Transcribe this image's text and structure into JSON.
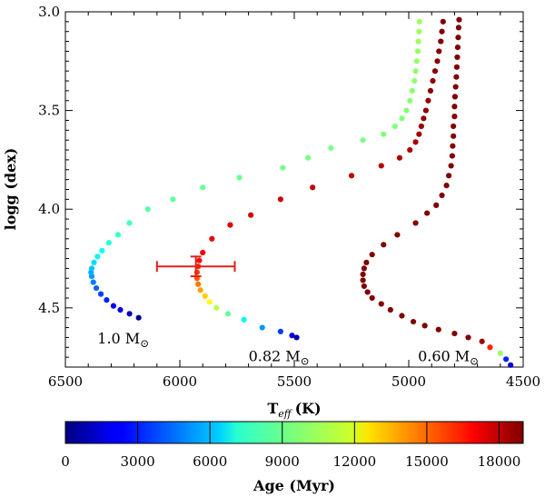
{
  "chart_data": {
    "type": "scatter",
    "xlabel": "T",
    "xlabel_sub": "eff",
    "xlabel_unit": "(K)",
    "ylabel": "logg (dex)",
    "x_reversed": true,
    "y_reversed": true,
    "xlim": [
      6500,
      4500
    ],
    "ylim": [
      3.0,
      4.8
    ],
    "x_ticks": [
      6500,
      6000,
      5500,
      5000,
      4500
    ],
    "y_ticks": [
      3.0,
      3.5,
      4.0,
      4.5
    ],
    "colorbar": {
      "label": "Age (Myr)",
      "min": 0,
      "max": 19000,
      "ticks": [
        0,
        3000,
        6000,
        9000,
        12000,
        15000,
        18000
      ],
      "colormap": "jet"
    },
    "series": [
      {
        "label_text": "1.0 M",
        "label_symbol": "⊙",
        "label_pos": [
          6360,
          4.68
        ],
        "points": [
          [
            6180,
            4.55,
            500
          ],
          [
            6220,
            4.53,
            1200
          ],
          [
            6260,
            4.51,
            1800
          ],
          [
            6290,
            4.49,
            2400
          ],
          [
            6320,
            4.46,
            3000
          ],
          [
            6345,
            4.43,
            3600
          ],
          [
            6365,
            4.4,
            4200
          ],
          [
            6378,
            4.37,
            4700
          ],
          [
            6385,
            4.34,
            5200
          ],
          [
            6388,
            4.32,
            5600
          ],
          [
            6385,
            4.3,
            6000
          ],
          [
            6375,
            4.27,
            6500
          ],
          [
            6360,
            4.24,
            7000
          ],
          [
            6340,
            4.21,
            7400
          ],
          [
            6310,
            4.17,
            7800
          ],
          [
            6270,
            4.13,
            8100
          ],
          [
            6220,
            4.07,
            8400
          ],
          [
            6140,
            4.0,
            8700
          ],
          [
            6030,
            3.95,
            8900
          ],
          [
            5900,
            3.89,
            9100
          ],
          [
            5740,
            3.84,
            9200
          ],
          [
            5550,
            3.79,
            9300
          ],
          [
            5440,
            3.74,
            9350
          ],
          [
            5340,
            3.69,
            9400
          ],
          [
            5200,
            3.65,
            9450
          ],
          [
            5110,
            3.62,
            9500
          ],
          [
            5060,
            3.58,
            9550
          ],
          [
            5030,
            3.54,
            9600
          ],
          [
            5010,
            3.5,
            9650
          ],
          [
            4995,
            3.45,
            9700
          ],
          [
            4985,
            3.4,
            9750
          ],
          [
            4975,
            3.35,
            9800
          ],
          [
            4970,
            3.3,
            9850
          ],
          [
            4965,
            3.25,
            9900
          ],
          [
            4960,
            3.2,
            9950
          ],
          [
            4958,
            3.15,
            10000
          ],
          [
            4955,
            3.1,
            10050
          ],
          [
            4953,
            3.05,
            10100
          ]
        ]
      },
      {
        "label_text": "0.82 M",
        "label_symbol": "⊙",
        "label_pos": [
          5700,
          4.77
        ],
        "points": [
          [
            5490,
            4.65,
            600
          ],
          [
            5510,
            4.64,
            2000
          ],
          [
            5560,
            4.62,
            3500
          ],
          [
            5640,
            4.6,
            5200
          ],
          [
            5720,
            4.56,
            7000
          ],
          [
            5790,
            4.53,
            9000
          ],
          [
            5840,
            4.5,
            10500
          ],
          [
            5870,
            4.47,
            11800
          ],
          [
            5890,
            4.44,
            12800
          ],
          [
            5910,
            4.41,
            13600
          ],
          [
            5920,
            4.38,
            14400
          ],
          [
            5925,
            4.35,
            15000
          ],
          [
            5925,
            4.32,
            15600
          ],
          [
            5920,
            4.29,
            16000
          ],
          [
            5915,
            4.26,
            16400
          ],
          [
            5900,
            4.22,
            16800
          ],
          [
            5860,
            4.15,
            17000
          ],
          [
            5780,
            4.08,
            17200
          ],
          [
            5690,
            4.03,
            17400
          ],
          [
            5560,
            3.95,
            17600
          ],
          [
            5420,
            3.89,
            17800
          ],
          [
            5250,
            3.83,
            17900
          ],
          [
            5120,
            3.78,
            18000
          ],
          [
            5040,
            3.74,
            18100
          ],
          [
            4995,
            3.7,
            18200
          ],
          [
            4970,
            3.66,
            18300
          ],
          [
            4955,
            3.62,
            18400
          ],
          [
            4945,
            3.58,
            18500
          ],
          [
            4935,
            3.54,
            18600
          ],
          [
            4925,
            3.5,
            18650
          ],
          [
            4915,
            3.45,
            18700
          ],
          [
            4905,
            3.4,
            18750
          ],
          [
            4895,
            3.35,
            18800
          ],
          [
            4885,
            3.3,
            18850
          ],
          [
            4875,
            3.25,
            18900
          ],
          [
            4868,
            3.2,
            18950
          ],
          [
            4860,
            3.15,
            19000
          ],
          [
            4855,
            3.1,
            19000
          ],
          [
            4850,
            3.05,
            19000
          ]
        ]
      },
      {
        "label_text": "0.60 M",
        "label_symbol": "⊙",
        "label_pos": [
          4960,
          4.77
        ],
        "points": [
          [
            4555,
            4.79,
            1500
          ],
          [
            4575,
            4.76,
            3000
          ],
          [
            4600,
            4.73,
            10000
          ],
          [
            4645,
            4.7,
            16000
          ],
          [
            4680,
            4.67,
            18500
          ],
          [
            4740,
            4.65,
            19000
          ],
          [
            4800,
            4.63,
            19000
          ],
          [
            4870,
            4.61,
            19000
          ],
          [
            4930,
            4.59,
            19000
          ],
          [
            4980,
            4.57,
            19000
          ],
          [
            5030,
            4.54,
            19000
          ],
          [
            5080,
            4.51,
            19000
          ],
          [
            5120,
            4.48,
            19000
          ],
          [
            5160,
            4.45,
            19000
          ],
          [
            5180,
            4.42,
            19000
          ],
          [
            5195,
            4.39,
            19000
          ],
          [
            5200,
            4.36,
            19000
          ],
          [
            5200,
            4.33,
            19000
          ],
          [
            5195,
            4.3,
            19000
          ],
          [
            5185,
            4.27,
            19000
          ],
          [
            5160,
            4.23,
            19000
          ],
          [
            5110,
            4.18,
            19000
          ],
          [
            5050,
            4.13,
            19000
          ],
          [
            4970,
            4.07,
            19000
          ],
          [
            4920,
            4.02,
            19000
          ],
          [
            4880,
            3.98,
            19000
          ],
          [
            4855,
            3.93,
            19000
          ],
          [
            4835,
            3.88,
            19000
          ],
          [
            4825,
            3.83,
            19000
          ],
          [
            4815,
            3.78,
            19000
          ],
          [
            4810,
            3.73,
            19000
          ],
          [
            4808,
            3.68,
            19000
          ],
          [
            4805,
            3.63,
            19000
          ],
          [
            4805,
            3.58,
            19000
          ],
          [
            4800,
            3.53,
            19000
          ],
          [
            4800,
            3.48,
            19000
          ],
          [
            4798,
            3.43,
            19000
          ],
          [
            4795,
            3.38,
            19000
          ],
          [
            4792,
            3.33,
            19000
          ],
          [
            4790,
            3.28,
            19000
          ],
          [
            4788,
            3.23,
            19000
          ],
          [
            4786,
            3.18,
            19000
          ],
          [
            4784,
            3.13,
            19000
          ],
          [
            4782,
            3.08,
            19000
          ],
          [
            4780,
            3.04,
            19000
          ]
        ]
      }
    ],
    "observation": {
      "teff": 5930,
      "teff_err": 170,
      "logg": 4.29,
      "logg_err": 0.05,
      "color": "#e0201a"
    }
  }
}
